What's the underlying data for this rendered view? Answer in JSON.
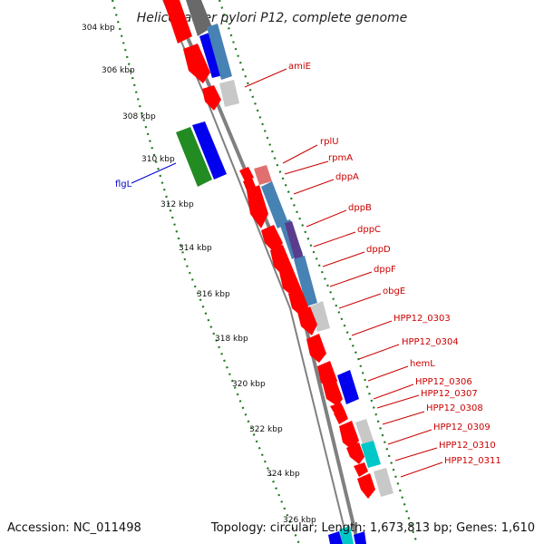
{
  "title": "Helicobacter pylori P12, complete genome",
  "footer": {
    "accession": "Accession: NC_011498",
    "summary": "Topology: circular; Length: 1,673,813 bp; Genes: 1,610"
  },
  "colors": {
    "forward": "#ff0000",
    "reverse_blue": "#0000ee",
    "green": "#228b22",
    "gray": "#c8c8c8",
    "steel": "#4682b4",
    "purple": "#5a3c8c",
    "cyan": "#00c8c8",
    "pink": "#e07070",
    "axis": "#808080",
    "tick": "#1e7a1e",
    "label_red": "#cc0000",
    "label_blue": "#0000cc"
  },
  "ticks": [
    "304 kbp",
    "306 kbp",
    "308 kbp",
    "310 kbp",
    "312 kbp",
    "314 kbp",
    "316 kbp",
    "318 kbp",
    "320 kbp",
    "322 kbp",
    "324 kbp",
    "326 kbp"
  ],
  "gene_labels": [
    {
      "text": "amiE",
      "color": "red"
    },
    {
      "text": "flgL",
      "color": "blue"
    },
    {
      "text": "rplU",
      "color": "red"
    },
    {
      "text": "rpmA",
      "color": "red"
    },
    {
      "text": "dppA",
      "color": "red"
    },
    {
      "text": "dppB",
      "color": "red"
    },
    {
      "text": "dppC",
      "color": "red"
    },
    {
      "text": "dppD",
      "color": "red"
    },
    {
      "text": "dppF",
      "color": "red"
    },
    {
      "text": "obgE",
      "color": "red"
    },
    {
      "text": "HPP12_0303",
      "color": "red"
    },
    {
      "text": "HPP12_0304",
      "color": "red"
    },
    {
      "text": "hemL",
      "color": "red"
    },
    {
      "text": "HPP12_0306",
      "color": "red"
    },
    {
      "text": "HPP12_0307",
      "color": "red"
    },
    {
      "text": "HPP12_0308",
      "color": "red"
    },
    {
      "text": "HPP12_0309",
      "color": "red"
    },
    {
      "text": "HPP12_0310",
      "color": "red"
    },
    {
      "text": "HPP12_0311",
      "color": "red"
    }
  ]
}
